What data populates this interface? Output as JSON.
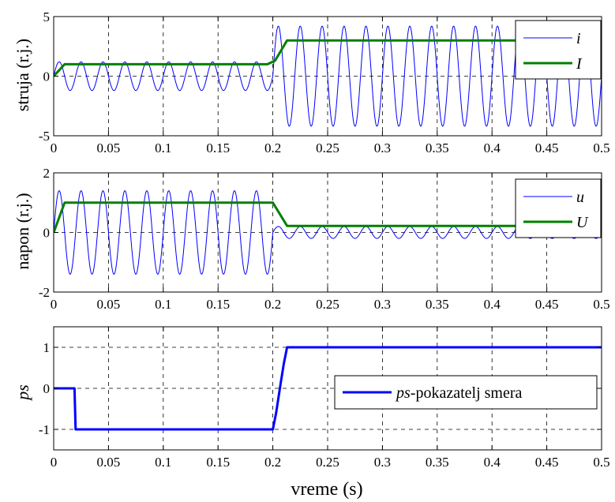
{
  "chart_data": [
    {
      "type": "line",
      "ylabel": "struja (r.j.)",
      "xlim": [
        0,
        0.5
      ],
      "ylim": [
        -5,
        5
      ],
      "xticks": [
        0,
        0.05,
        0.1,
        0.15,
        0.2,
        0.25,
        0.3,
        0.35,
        0.4,
        0.45,
        0.5
      ],
      "xtick_labels": [
        "0",
        "0.05",
        "0.1",
        "0.15",
        "0.2",
        "0.25",
        "0.3",
        "0.35",
        "0.4",
        "0.45",
        "0.5"
      ],
      "yticks": [
        -5,
        0,
        5
      ],
      "ytick_labels": [
        "-5",
        "0",
        "5"
      ],
      "grid": true,
      "legend_position": "top-right",
      "series": [
        {
          "name": "i",
          "color": "#0000ff",
          "kind": "sine",
          "frequency_hz": 50,
          "segments": [
            {
              "t_start": 0,
              "t_end": 0.2,
              "amplitude": 1.2
            },
            {
              "t_start": 0.2,
              "t_end": 0.5,
              "amplitude": 4.2
            }
          ]
        },
        {
          "name": "I",
          "color": "#008000",
          "kind": "envelope",
          "points": [
            [
              0,
              0
            ],
            [
              0.01,
              1.0
            ],
            [
              0.195,
              1.0
            ],
            [
              0.202,
              1.3
            ],
            [
              0.213,
              3.0
            ],
            [
              0.5,
              3.0
            ]
          ]
        }
      ]
    },
    {
      "type": "line",
      "ylabel": "napon (r.j.)",
      "xlim": [
        0,
        0.5
      ],
      "ylim": [
        -2,
        2
      ],
      "xticks": [
        0,
        0.05,
        0.1,
        0.15,
        0.2,
        0.25,
        0.3,
        0.35,
        0.4,
        0.45,
        0.5
      ],
      "xtick_labels": [
        "0",
        "0.05",
        "0.1",
        "0.15",
        "0.2",
        "0.25",
        "0.3",
        "0.35",
        "0.4",
        "0.45",
        "0.5"
      ],
      "yticks": [
        -2,
        0,
        2
      ],
      "ytick_labels": [
        "-2",
        "0",
        "2"
      ],
      "grid": true,
      "legend_position": "top-right",
      "series": [
        {
          "name": "u",
          "color": "#0000ff",
          "kind": "sine",
          "frequency_hz": 50,
          "segments": [
            {
              "t_start": 0,
              "t_end": 0.2,
              "amplitude": 1.4
            },
            {
              "t_start": 0.2,
              "t_end": 0.5,
              "amplitude": 0.2
            }
          ]
        },
        {
          "name": "U",
          "color": "#008000",
          "kind": "envelope",
          "points": [
            [
              0,
              0
            ],
            [
              0.01,
              1.0
            ],
            [
              0.2,
              1.0
            ],
            [
              0.213,
              0.22
            ],
            [
              0.5,
              0.22
            ]
          ]
        }
      ]
    },
    {
      "type": "line",
      "ylabel": "ps",
      "xlabel": "vreme (s)",
      "xlim": [
        0,
        0.5
      ],
      "ylim": [
        -1.5,
        1.5
      ],
      "xticks": [
        0,
        0.05,
        0.1,
        0.15,
        0.2,
        0.25,
        0.3,
        0.35,
        0.4,
        0.45,
        0.5
      ],
      "xtick_labels": [
        "0",
        "0.05",
        "0.1",
        "0.15",
        "0.2",
        "0.25",
        "0.3",
        "0.35",
        "0.4",
        "0.45",
        "0.5"
      ],
      "yticks": [
        -1,
        0,
        1
      ],
      "ytick_labels": [
        "-1",
        "0",
        "1"
      ],
      "grid": true,
      "legend_position": "center-right",
      "series": [
        {
          "name": "ps",
          "legend_suffix": "-pokazatelj smera",
          "color": "#0000ff",
          "kind": "envelope",
          "points": [
            [
              0,
              0
            ],
            [
              0.019,
              0
            ],
            [
              0.02,
              -1
            ],
            [
              0.2,
              -1
            ],
            [
              0.203,
              -0.6
            ],
            [
              0.207,
              0.1
            ],
            [
              0.21,
              0.6
            ],
            [
              0.213,
              1
            ],
            [
              0.5,
              1
            ]
          ]
        }
      ]
    }
  ]
}
